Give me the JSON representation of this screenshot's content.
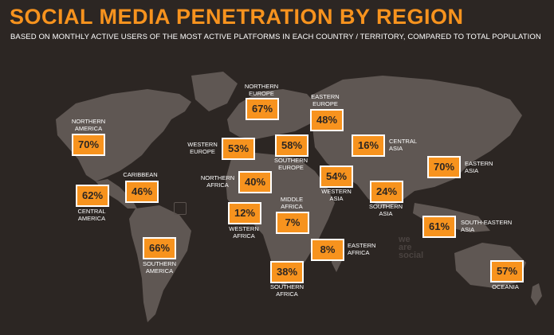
{
  "title": "SOCIAL MEDIA PENETRATION BY REGION",
  "subtitle": "BASED ON MONTHLY ACTIVE USERS OF THE MOST ACTIVE PLATFORMS IN EACH COUNTRY / TERRITORY, COMPARED TO TOTAL POPULATION",
  "colors": {
    "accent": "#f7931e",
    "background": "#2c2623",
    "land": "#5f5753"
  },
  "logo": {
    "line1": "we",
    "line2": "are",
    "line3": "social"
  },
  "regions": {
    "northern_america": {
      "name_line1": "NORTHERN",
      "name_line2": "AMERICA",
      "value": "70%"
    },
    "central_america": {
      "name_line1": "CENTRAL",
      "name_line2": "AMERICA",
      "value": "62%"
    },
    "caribbean": {
      "name_line1": "CARIBBEAN",
      "value": "46%"
    },
    "southern_america": {
      "name_line1": "SOUTHERN",
      "name_line2": "AMERICA",
      "value": "66%"
    },
    "northern_europe": {
      "name_line1": "NORTHERN",
      "name_line2": "EUROPE",
      "value": "67%"
    },
    "eastern_europe": {
      "name_line1": "EASTERN",
      "name_line2": "EUROPE",
      "value": "48%"
    },
    "western_europe": {
      "name_line1": "WESTERN",
      "name_line2": "EUROPE",
      "value": "53%"
    },
    "southern_europe": {
      "name_line1": "SOUTHERN",
      "name_line2": "EUROPE",
      "value": "58%"
    },
    "central_asia": {
      "name_line1": "CENTRAL",
      "name_line2": "ASIA",
      "value": "16%"
    },
    "northern_africa": {
      "name_line1": "NORTHERN",
      "name_line2": "AFRICA",
      "value": "40%"
    },
    "western_asia": {
      "name_line1": "WESTERN",
      "name_line2": "ASIA",
      "value": "54%"
    },
    "southern_asia": {
      "name_line1": "SOUTHERN",
      "name_line2": "ASIA",
      "value": "24%"
    },
    "eastern_asia": {
      "name_line1": "EASTERN",
      "name_line2": "ASIA",
      "value": "70%"
    },
    "western_africa": {
      "name_line1": "WESTERN",
      "name_line2": "AFRICA",
      "value": "12%"
    },
    "middle_africa": {
      "name_line1": "MIDDLE",
      "name_line2": "AFRICA",
      "value": "7%"
    },
    "south_eastern_asia": {
      "name_line1": "SOUTH-EASTERN",
      "name_line2": "ASIA",
      "value": "61%"
    },
    "eastern_africa": {
      "name_line1": "EASTERN",
      "name_line2": "AFRICA",
      "value": "8%"
    },
    "southern_africa": {
      "name_line1": "SOUTHERN",
      "name_line2": "AFRICA",
      "value": "38%"
    },
    "oceania": {
      "name_line1": "OCEANIA",
      "value": "57%"
    }
  }
}
